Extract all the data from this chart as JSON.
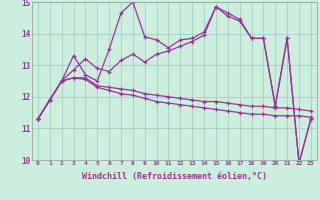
{
  "xlabel": "Windchill (Refroidissement éolien,°C)",
  "bg_color": "#cceedd",
  "line_color": "#993399",
  "grid_color": "#aacccc",
  "ylim": [
    10,
    15
  ],
  "xlim": [
    -0.5,
    23.5
  ],
  "yticks": [
    10,
    11,
    12,
    13,
    14,
    15
  ],
  "xticks": [
    0,
    1,
    2,
    3,
    4,
    5,
    6,
    7,
    8,
    9,
    10,
    11,
    12,
    13,
    14,
    15,
    16,
    17,
    18,
    19,
    20,
    21,
    22,
    23
  ],
  "lines": [
    [
      11.3,
      11.9,
      12.5,
      13.3,
      12.7,
      12.5,
      13.5,
      14.65,
      15.0,
      13.9,
      13.8,
      13.55,
      13.8,
      13.85,
      14.05,
      14.85,
      14.65,
      14.45,
      13.85,
      13.85,
      11.7,
      13.85,
      9.9,
      11.3
    ],
    [
      11.3,
      11.9,
      12.5,
      12.85,
      13.2,
      12.9,
      12.8,
      13.15,
      13.35,
      13.1,
      13.35,
      13.45,
      13.6,
      13.75,
      13.95,
      14.85,
      14.55,
      14.4,
      13.85,
      13.85,
      11.7,
      13.85,
      9.9,
      11.3
    ],
    [
      11.3,
      11.9,
      12.5,
      12.6,
      12.6,
      12.35,
      12.3,
      12.25,
      12.2,
      12.1,
      12.05,
      12.0,
      11.95,
      11.9,
      11.85,
      11.85,
      11.8,
      11.75,
      11.7,
      11.7,
      11.65,
      11.65,
      11.6,
      11.55
    ],
    [
      11.3,
      11.9,
      12.5,
      12.6,
      12.55,
      12.3,
      12.2,
      12.1,
      12.05,
      11.95,
      11.85,
      11.8,
      11.75,
      11.7,
      11.65,
      11.6,
      11.55,
      11.5,
      11.45,
      11.45,
      11.4,
      11.4,
      11.4,
      11.35
    ]
  ]
}
